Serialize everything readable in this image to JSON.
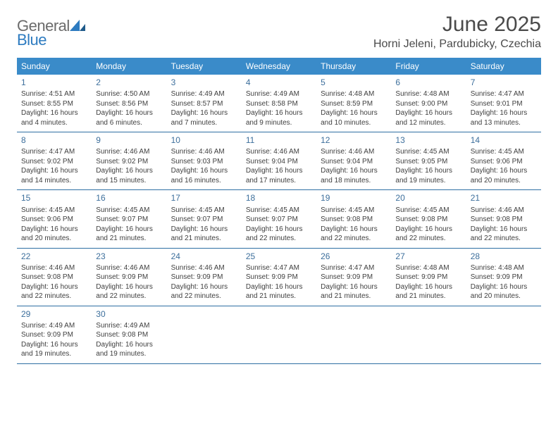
{
  "logo": {
    "text1": "General",
    "text2": "Blue"
  },
  "title": "June 2025",
  "location": "Horni Jeleni, Pardubicky, Czechia",
  "dow_header_bg": "#3a8bc9",
  "week_border_color": "#2e6fa3",
  "date_color": "#3d6f9c",
  "days_of_week": [
    "Sunday",
    "Monday",
    "Tuesday",
    "Wednesday",
    "Thursday",
    "Friday",
    "Saturday"
  ],
  "weeks": [
    [
      {
        "date": "1",
        "sunrise": "Sunrise: 4:51 AM",
        "sunset": "Sunset: 8:55 PM",
        "daylight": "Daylight: 16 hours and 4 minutes."
      },
      {
        "date": "2",
        "sunrise": "Sunrise: 4:50 AM",
        "sunset": "Sunset: 8:56 PM",
        "daylight": "Daylight: 16 hours and 6 minutes."
      },
      {
        "date": "3",
        "sunrise": "Sunrise: 4:49 AM",
        "sunset": "Sunset: 8:57 PM",
        "daylight": "Daylight: 16 hours and 7 minutes."
      },
      {
        "date": "4",
        "sunrise": "Sunrise: 4:49 AM",
        "sunset": "Sunset: 8:58 PM",
        "daylight": "Daylight: 16 hours and 9 minutes."
      },
      {
        "date": "5",
        "sunrise": "Sunrise: 4:48 AM",
        "sunset": "Sunset: 8:59 PM",
        "daylight": "Daylight: 16 hours and 10 minutes."
      },
      {
        "date": "6",
        "sunrise": "Sunrise: 4:48 AM",
        "sunset": "Sunset: 9:00 PM",
        "daylight": "Daylight: 16 hours and 12 minutes."
      },
      {
        "date": "7",
        "sunrise": "Sunrise: 4:47 AM",
        "sunset": "Sunset: 9:01 PM",
        "daylight": "Daylight: 16 hours and 13 minutes."
      }
    ],
    [
      {
        "date": "8",
        "sunrise": "Sunrise: 4:47 AM",
        "sunset": "Sunset: 9:02 PM",
        "daylight": "Daylight: 16 hours and 14 minutes."
      },
      {
        "date": "9",
        "sunrise": "Sunrise: 4:46 AM",
        "sunset": "Sunset: 9:02 PM",
        "daylight": "Daylight: 16 hours and 15 minutes."
      },
      {
        "date": "10",
        "sunrise": "Sunrise: 4:46 AM",
        "sunset": "Sunset: 9:03 PM",
        "daylight": "Daylight: 16 hours and 16 minutes."
      },
      {
        "date": "11",
        "sunrise": "Sunrise: 4:46 AM",
        "sunset": "Sunset: 9:04 PM",
        "daylight": "Daylight: 16 hours and 17 minutes."
      },
      {
        "date": "12",
        "sunrise": "Sunrise: 4:46 AM",
        "sunset": "Sunset: 9:04 PM",
        "daylight": "Daylight: 16 hours and 18 minutes."
      },
      {
        "date": "13",
        "sunrise": "Sunrise: 4:45 AM",
        "sunset": "Sunset: 9:05 PM",
        "daylight": "Daylight: 16 hours and 19 minutes."
      },
      {
        "date": "14",
        "sunrise": "Sunrise: 4:45 AM",
        "sunset": "Sunset: 9:06 PM",
        "daylight": "Daylight: 16 hours and 20 minutes."
      }
    ],
    [
      {
        "date": "15",
        "sunrise": "Sunrise: 4:45 AM",
        "sunset": "Sunset: 9:06 PM",
        "daylight": "Daylight: 16 hours and 20 minutes."
      },
      {
        "date": "16",
        "sunrise": "Sunrise: 4:45 AM",
        "sunset": "Sunset: 9:07 PM",
        "daylight": "Daylight: 16 hours and 21 minutes."
      },
      {
        "date": "17",
        "sunrise": "Sunrise: 4:45 AM",
        "sunset": "Sunset: 9:07 PM",
        "daylight": "Daylight: 16 hours and 21 minutes."
      },
      {
        "date": "18",
        "sunrise": "Sunrise: 4:45 AM",
        "sunset": "Sunset: 9:07 PM",
        "daylight": "Daylight: 16 hours and 22 minutes."
      },
      {
        "date": "19",
        "sunrise": "Sunrise: 4:45 AM",
        "sunset": "Sunset: 9:08 PM",
        "daylight": "Daylight: 16 hours and 22 minutes."
      },
      {
        "date": "20",
        "sunrise": "Sunrise: 4:45 AM",
        "sunset": "Sunset: 9:08 PM",
        "daylight": "Daylight: 16 hours and 22 minutes."
      },
      {
        "date": "21",
        "sunrise": "Sunrise: 4:46 AM",
        "sunset": "Sunset: 9:08 PM",
        "daylight": "Daylight: 16 hours and 22 minutes."
      }
    ],
    [
      {
        "date": "22",
        "sunrise": "Sunrise: 4:46 AM",
        "sunset": "Sunset: 9:08 PM",
        "daylight": "Daylight: 16 hours and 22 minutes."
      },
      {
        "date": "23",
        "sunrise": "Sunrise: 4:46 AM",
        "sunset": "Sunset: 9:09 PM",
        "daylight": "Daylight: 16 hours and 22 minutes."
      },
      {
        "date": "24",
        "sunrise": "Sunrise: 4:46 AM",
        "sunset": "Sunset: 9:09 PM",
        "daylight": "Daylight: 16 hours and 22 minutes."
      },
      {
        "date": "25",
        "sunrise": "Sunrise: 4:47 AM",
        "sunset": "Sunset: 9:09 PM",
        "daylight": "Daylight: 16 hours and 21 minutes."
      },
      {
        "date": "26",
        "sunrise": "Sunrise: 4:47 AM",
        "sunset": "Sunset: 9:09 PM",
        "daylight": "Daylight: 16 hours and 21 minutes."
      },
      {
        "date": "27",
        "sunrise": "Sunrise: 4:48 AM",
        "sunset": "Sunset: 9:09 PM",
        "daylight": "Daylight: 16 hours and 21 minutes."
      },
      {
        "date": "28",
        "sunrise": "Sunrise: 4:48 AM",
        "sunset": "Sunset: 9:09 PM",
        "daylight": "Daylight: 16 hours and 20 minutes."
      }
    ],
    [
      {
        "date": "29",
        "sunrise": "Sunrise: 4:49 AM",
        "sunset": "Sunset: 9:09 PM",
        "daylight": "Daylight: 16 hours and 19 minutes."
      },
      {
        "date": "30",
        "sunrise": "Sunrise: 4:49 AM",
        "sunset": "Sunset: 9:08 PM",
        "daylight": "Daylight: 16 hours and 19 minutes."
      },
      null,
      null,
      null,
      null,
      null
    ]
  ]
}
